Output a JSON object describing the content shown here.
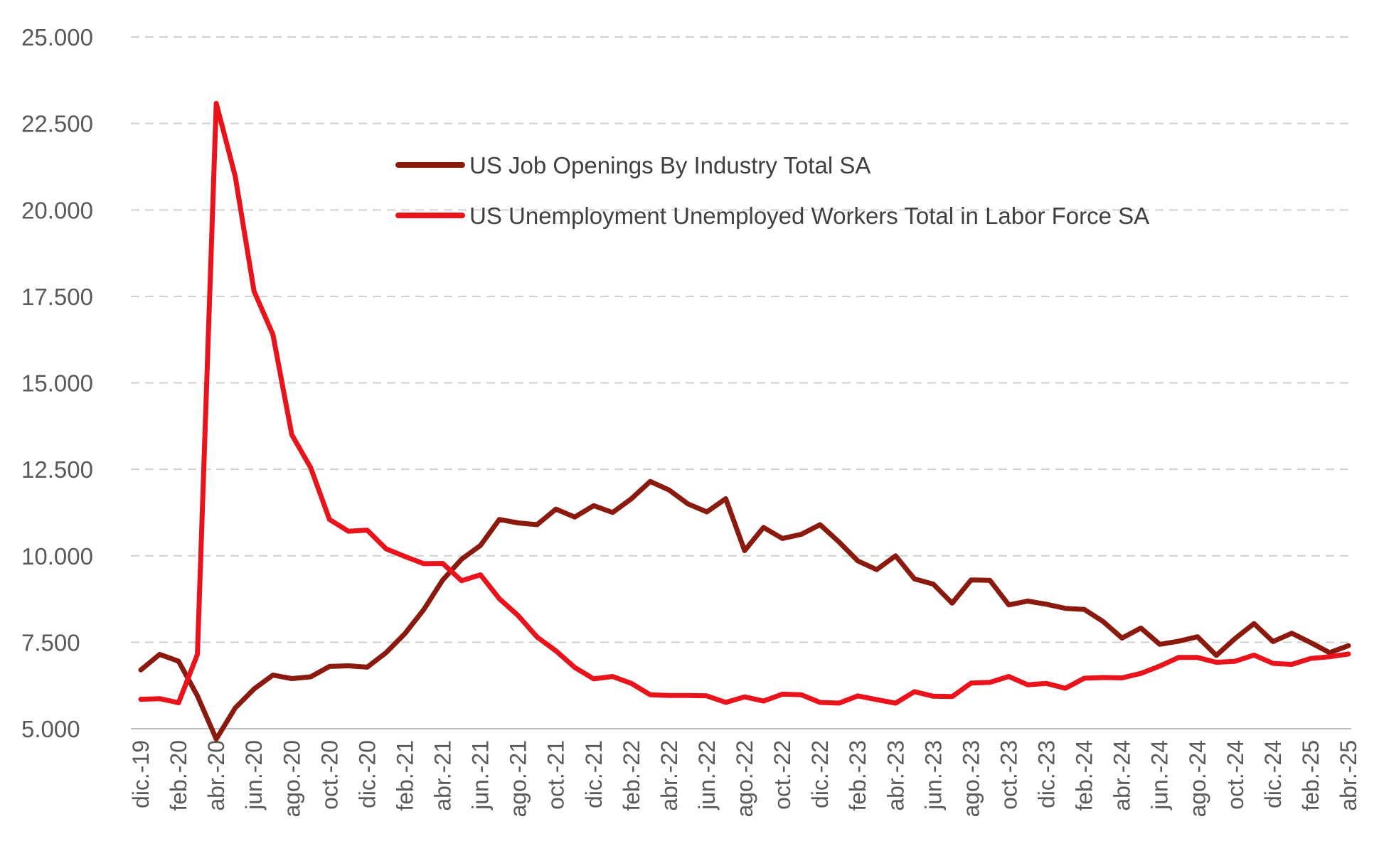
{
  "chart_data": {
    "type": "line",
    "title": "",
    "xlabel": "",
    "ylabel": "",
    "ylim": [
      5000,
      25000
    ],
    "y_ticks": [
      "5.000",
      "7.500",
      "10.000",
      "12.500",
      "15.000",
      "17.500",
      "20.000",
      "22.500",
      "25.000"
    ],
    "y_tick_values": [
      5000,
      7500,
      10000,
      12500,
      15000,
      17500,
      20000,
      22500,
      25000
    ],
    "grid": true,
    "grid_style": "dashed-horizontal",
    "legend_position": "top-center",
    "categories": [
      "dic.-19",
      "ene.-20",
      "feb.-20",
      "mar.-20",
      "abr.-20",
      "may.-20",
      "jun.-20",
      "jul.-20",
      "ago.-20",
      "sep.-20",
      "oct.-20",
      "nov.-20",
      "dic.-20",
      "ene.-21",
      "feb.-21",
      "mar.-21",
      "abr.-21",
      "may.-21",
      "jun.-21",
      "jul.-21",
      "ago.-21",
      "sep.-21",
      "oct.-21",
      "nov.-21",
      "dic.-21",
      "ene.-22",
      "feb.-22",
      "mar.-22",
      "abr.-22",
      "may.-22",
      "jun.-22",
      "jul.-22",
      "ago.-22",
      "sep.-22",
      "oct.-22",
      "nov.-22",
      "dic.-22",
      "ene.-23",
      "feb.-23",
      "mar.-23",
      "abr.-23",
      "may.-23",
      "jun.-23",
      "jul.-23",
      "ago.-23",
      "sep.-23",
      "oct.-23",
      "nov.-23",
      "dic.-23",
      "ene.-24",
      "feb.-24",
      "mar.-24",
      "abr.-24",
      "may.-24",
      "jun.-24",
      "jul.-24",
      "ago.-24",
      "sep.-24",
      "oct.-24",
      "nov.-24",
      "dic.-24",
      "ene.-25",
      "feb.-25",
      "mar.-25",
      "abr.-25"
    ],
    "x_tick_labels": [
      "dic.-19",
      "feb.-20",
      "abr.-20",
      "jun.-20",
      "ago.-20",
      "oct.-20",
      "dic.-20",
      "feb.-21",
      "abr.-21",
      "jun.-21",
      "ago.-21",
      "oct.-21",
      "dic.-21",
      "feb.-22",
      "abr.-22",
      "jun.-22",
      "ago.-22",
      "oct.-22",
      "dic.-22",
      "feb.-23",
      "abr.-23",
      "jun.-23",
      "ago.-23",
      "oct.-23",
      "dic.-23",
      "feb.-24",
      "abr.-24",
      "jun.-24",
      "ago.-24",
      "oct.-24",
      "dic.-24",
      "feb.-25",
      "abr.-25"
    ],
    "series": [
      {
        "name": "US Job Openings By Industry Total SA",
        "color": "#8B1A0E",
        "values": [
          6700,
          7150,
          6950,
          5950,
          4700,
          5600,
          6150,
          6550,
          6450,
          6500,
          6800,
          6820,
          6780,
          7200,
          7750,
          8450,
          9300,
          9900,
          10300,
          11050,
          10950,
          10900,
          11350,
          11120,
          11450,
          11250,
          11650,
          12150,
          11900,
          11500,
          11270,
          11650,
          10150,
          10820,
          10500,
          10620,
          10900,
          10400,
          9850,
          9600,
          10000,
          9330,
          9180,
          8630,
          9300,
          9290,
          8580,
          8690,
          8600,
          8480,
          8450,
          8100,
          7620,
          7910,
          7440,
          7530,
          7660,
          7120,
          7610,
          8040,
          7520,
          7760,
          7490,
          7200,
          7400
        ]
      },
      {
        "name": "US Unemployment Unemployed Workers Total in Labor Force SA",
        "color": "#E8131B",
        "values": [
          5850,
          5870,
          5750,
          7150,
          23080,
          20980,
          17650,
          16400,
          13500,
          12550,
          11050,
          10710,
          10740,
          10200,
          9980,
          9770,
          9780,
          9280,
          9450,
          8760,
          8270,
          7650,
          7250,
          6770,
          6440,
          6510,
          6310,
          5980,
          5960,
          5960,
          5950,
          5760,
          5920,
          5800,
          6000,
          5980,
          5760,
          5740,
          5950,
          5840,
          5740,
          6070,
          5940,
          5930,
          6320,
          6340,
          6510,
          6270,
          6310,
          6170,
          6460,
          6480,
          6470,
          6600,
          6810,
          7060,
          7060,
          6920,
          6950,
          7130,
          6890,
          6860,
          7030,
          7080,
          7160
        ]
      }
    ]
  }
}
